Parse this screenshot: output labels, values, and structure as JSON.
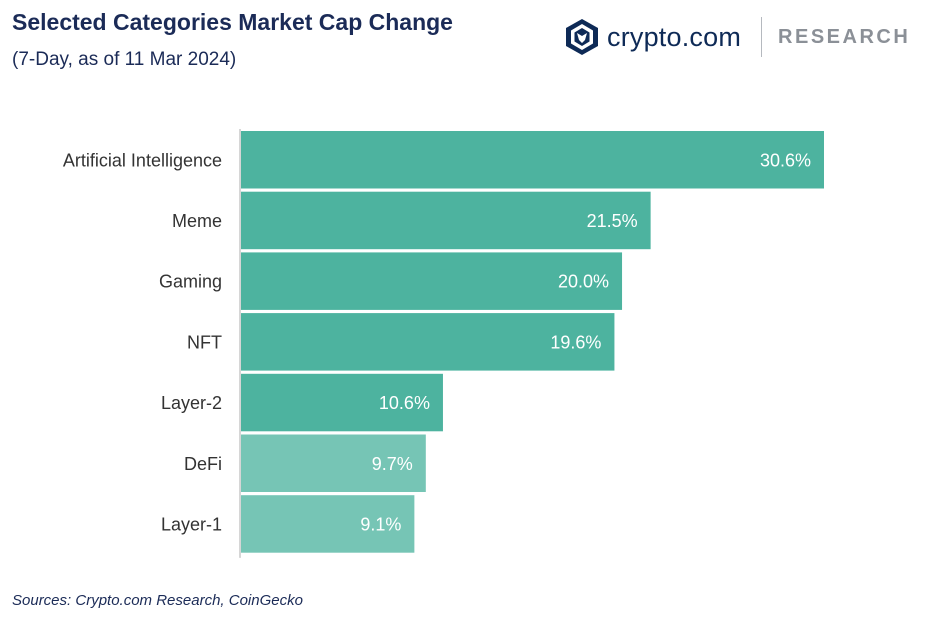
{
  "header": {
    "title": "Selected Categories Market Cap Change",
    "subtitle": "(7-Day, as of 11 Mar 2024)"
  },
  "brand": {
    "name": "crypto.com",
    "section": "RESEARCH",
    "logo_icon": "crypto-com-lion-shield-icon"
  },
  "footer": {
    "sources": "Sources: Crypto.com Research, CoinGecko"
  },
  "colors": {
    "bar_dark": "#4db39f",
    "bar_light": "#76c5b5",
    "axis": "#c9c9c9",
    "title": "#1b2b57"
  },
  "chart_data": {
    "type": "bar",
    "orientation": "horizontal",
    "categories": [
      "Artificial Intelligence",
      "Meme",
      "Gaming",
      "NFT",
      "Layer-2",
      "DeFi",
      "Layer-1"
    ],
    "values": [
      30.6,
      21.5,
      20.0,
      19.6,
      10.6,
      9.7,
      9.1
    ],
    "value_labels": [
      "30.6%",
      "21.5%",
      "20.0%",
      "19.6%",
      "10.6%",
      "9.7%",
      "9.1%"
    ],
    "highlight": [
      true,
      true,
      true,
      true,
      true,
      false,
      false
    ],
    "xlim": [
      0,
      30.6
    ],
    "grid": false
  }
}
